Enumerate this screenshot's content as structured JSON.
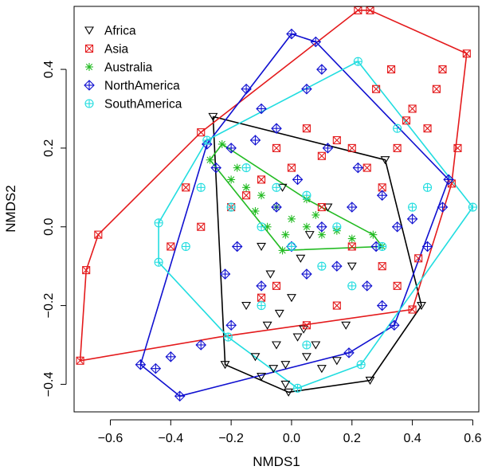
{
  "chart_data": {
    "type": "scatter",
    "title": "",
    "xlabel": "NMDS1",
    "ylabel": "NMDS2",
    "xlim": [
      -0.72,
      0.62
    ],
    "ylim": [
      -0.47,
      0.56
    ],
    "xticks": [
      -0.6,
      -0.4,
      -0.2,
      0.0,
      0.2,
      0.4,
      0.6
    ],
    "xtick_labels": [
      "−0.6",
      "−0.4",
      "−0.2",
      "0.0",
      "0.2",
      "0.4",
      "0.6"
    ],
    "yticks": [
      -0.4,
      -0.2,
      0.0,
      0.2,
      0.4
    ],
    "ytick_labels": [
      "−0.4",
      "−0.2",
      "0.0",
      "0.2",
      "0.4"
    ],
    "grid": false,
    "legend_position": "top-left",
    "series": [
      {
        "name": "Africa",
        "color": "#000000",
        "marker": "triangle-down",
        "hull": [
          [
            -0.26,
            0.28
          ],
          [
            0.31,
            0.17
          ],
          [
            0.43,
            -0.2
          ],
          [
            0.26,
            -0.39
          ],
          [
            -0.01,
            -0.42
          ],
          [
            -0.22,
            -0.35
          ],
          [
            -0.26,
            0.28
          ]
        ],
        "points": [
          [
            -0.26,
            0.28
          ],
          [
            0.31,
            0.17
          ],
          [
            0.43,
            -0.2
          ],
          [
            0.26,
            -0.39
          ],
          [
            -0.01,
            -0.42
          ],
          [
            -0.22,
            -0.35
          ],
          [
            -0.1,
            -0.38
          ],
          [
            0.1,
            -0.36
          ],
          [
            -0.05,
            -0.3
          ],
          [
            0.02,
            -0.28
          ],
          [
            -0.08,
            -0.25
          ],
          [
            0.05,
            -0.33
          ],
          [
            -0.02,
            -0.35
          ],
          [
            0.08,
            -0.3
          ],
          [
            -0.12,
            -0.33
          ],
          [
            0.15,
            -0.34
          ],
          [
            -0.04,
            -0.22
          ],
          [
            0.0,
            -0.18
          ],
          [
            -0.07,
            -0.12
          ],
          [
            0.03,
            -0.08
          ],
          [
            -0.1,
            -0.05
          ],
          [
            0.06,
            -0.02
          ],
          [
            -0.03,
            0.1
          ],
          [
            0.12,
            0.05
          ],
          [
            0.2,
            -0.1
          ],
          [
            -0.15,
            -0.2
          ],
          [
            0.18,
            -0.25
          ],
          [
            -0.02,
            -0.4
          ],
          [
            0.04,
            -0.26
          ],
          [
            -0.06,
            -0.36
          ]
        ]
      },
      {
        "name": "Asia",
        "color": "#e41a1c",
        "marker": "square-x",
        "hull": [
          [
            -0.7,
            -0.34
          ],
          [
            -0.68,
            -0.11
          ],
          [
            -0.64,
            -0.02
          ],
          [
            -0.3,
            0.24
          ],
          [
            0.22,
            0.55
          ],
          [
            0.26,
            0.55
          ],
          [
            0.58,
            0.44
          ],
          [
            0.53,
            0.11
          ],
          [
            0.4,
            -0.21
          ],
          [
            -0.24,
            -0.28
          ],
          [
            -0.7,
            -0.34
          ]
        ],
        "points": [
          [
            -0.7,
            -0.34
          ],
          [
            -0.68,
            -0.11
          ],
          [
            -0.64,
            -0.02
          ],
          [
            -0.3,
            0.24
          ],
          [
            0.22,
            0.55
          ],
          [
            0.26,
            0.55
          ],
          [
            0.58,
            0.44
          ],
          [
            0.53,
            0.11
          ],
          [
            0.4,
            -0.21
          ],
          [
            0.5,
            0.4
          ],
          [
            0.55,
            0.2
          ],
          [
            0.48,
            0.35
          ],
          [
            0.45,
            0.25
          ],
          [
            0.4,
            0.3
          ],
          [
            0.35,
            0.2
          ],
          [
            0.3,
            0.1
          ],
          [
            0.25,
            0.15
          ],
          [
            0.2,
            0.2
          ],
          [
            0.15,
            0.22
          ],
          [
            0.1,
            0.18
          ],
          [
            0.05,
            0.25
          ],
          [
            0.0,
            0.15
          ],
          [
            -0.05,
            0.2
          ],
          [
            -0.1,
            0.12
          ],
          [
            -0.15,
            0.08
          ],
          [
            -0.2,
            0.05
          ],
          [
            0.1,
            0.05
          ],
          [
            0.2,
            -0.05
          ],
          [
            0.3,
            -0.1
          ],
          [
            0.35,
            -0.15
          ],
          [
            0.42,
            -0.08
          ],
          [
            0.15,
            -0.2
          ],
          [
            0.05,
            -0.25
          ],
          [
            -0.05,
            -0.15
          ],
          [
            -0.1,
            -0.18
          ],
          [
            -0.3,
            0.0
          ],
          [
            -0.4,
            -0.05
          ],
          [
            -0.35,
            0.1
          ],
          [
            0.28,
            0.35
          ],
          [
            0.33,
            0.4
          ],
          [
            0.38,
            0.27
          ]
        ]
      },
      {
        "name": "Australia",
        "color": "#22bb22",
        "marker": "asterisk",
        "hull": [
          [
            -0.27,
            0.17
          ],
          [
            -0.23,
            0.21
          ],
          [
            0.05,
            0.07
          ],
          [
            0.27,
            -0.02
          ],
          [
            0.3,
            -0.05
          ],
          [
            -0.03,
            -0.06
          ],
          [
            -0.27,
            0.17
          ]
        ],
        "points": [
          [
            -0.27,
            0.17
          ],
          [
            -0.23,
            0.21
          ],
          [
            0.05,
            0.07
          ],
          [
            0.27,
            -0.02
          ],
          [
            0.3,
            -0.05
          ],
          [
            -0.03,
            -0.06
          ],
          [
            -0.2,
            0.12
          ],
          [
            -0.15,
            0.1
          ],
          [
            -0.1,
            0.08
          ],
          [
            -0.05,
            0.05
          ],
          [
            0.0,
            0.02
          ],
          [
            0.05,
            0.0
          ],
          [
            0.1,
            -0.02
          ],
          [
            0.15,
            -0.01
          ],
          [
            0.2,
            -0.03
          ],
          [
            -0.12,
            0.04
          ],
          [
            -0.08,
            0.0
          ],
          [
            -0.02,
            -0.02
          ],
          [
            -0.18,
            0.15
          ],
          [
            0.08,
            0.03
          ]
        ]
      },
      {
        "name": "NorthAmerica",
        "color": "#1010d0",
        "marker": "diamond-plus",
        "hull": [
          [
            -0.5,
            -0.35
          ],
          [
            -0.28,
            0.21
          ],
          [
            0.0,
            0.49
          ],
          [
            0.08,
            0.47
          ],
          [
            0.52,
            0.12
          ],
          [
            0.34,
            -0.25
          ],
          [
            0.19,
            -0.32
          ],
          [
            -0.37,
            -0.43
          ],
          [
            -0.5,
            -0.35
          ]
        ],
        "points": [
          [
            -0.5,
            -0.35
          ],
          [
            -0.28,
            0.21
          ],
          [
            0.0,
            0.49
          ],
          [
            0.08,
            0.47
          ],
          [
            0.52,
            0.12
          ],
          [
            0.34,
            -0.25
          ],
          [
            0.19,
            -0.32
          ],
          [
            -0.37,
            -0.43
          ],
          [
            -0.45,
            -0.36
          ],
          [
            -0.4,
            -0.33
          ],
          [
            -0.3,
            -0.3
          ],
          [
            -0.2,
            -0.25
          ],
          [
            -0.1,
            -0.15
          ],
          [
            0.0,
            -0.05
          ],
          [
            0.1,
            0.0
          ],
          [
            0.2,
            0.05
          ],
          [
            0.3,
            0.08
          ],
          [
            0.4,
            0.02
          ],
          [
            0.45,
            -0.05
          ],
          [
            0.5,
            0.05
          ],
          [
            -0.15,
            0.35
          ],
          [
            -0.1,
            0.3
          ],
          [
            -0.05,
            0.25
          ],
          [
            0.05,
            0.35
          ],
          [
            0.1,
            0.4
          ],
          [
            -0.2,
            0.2
          ],
          [
            -0.25,
            0.15
          ],
          [
            0.15,
            -0.1
          ],
          [
            0.25,
            -0.15
          ],
          [
            0.3,
            -0.2
          ],
          [
            0.05,
            -0.12
          ],
          [
            -0.05,
            0.05
          ],
          [
            0.02,
            0.12
          ],
          [
            0.12,
            0.2
          ],
          [
            0.22,
            0.15
          ],
          [
            -0.18,
            -0.05
          ],
          [
            -0.22,
            -0.12
          ],
          [
            0.35,
            0.0
          ],
          [
            0.28,
            -0.05
          ],
          [
            -0.12,
            0.22
          ]
        ]
      },
      {
        "name": "SouthAmerica",
        "color": "#22dde0",
        "marker": "circle-plus",
        "hull": [
          [
            -0.44,
            -0.09
          ],
          [
            -0.44,
            0.01
          ],
          [
            -0.28,
            0.22
          ],
          [
            0.22,
            0.42
          ],
          [
            0.6,
            0.05
          ],
          [
            0.23,
            -0.35
          ],
          [
            0.02,
            -0.41
          ],
          [
            -0.21,
            -0.28
          ],
          [
            -0.44,
            -0.09
          ]
        ],
        "points": [
          [
            -0.44,
            -0.09
          ],
          [
            -0.44,
            0.01
          ],
          [
            -0.28,
            0.22
          ],
          [
            0.22,
            0.42
          ],
          [
            0.6,
            0.05
          ],
          [
            0.23,
            -0.35
          ],
          [
            0.02,
            -0.41
          ],
          [
            -0.21,
            -0.28
          ],
          [
            -0.3,
            0.1
          ],
          [
            -0.2,
            0.05
          ],
          [
            -0.1,
            0.0
          ],
          [
            0.0,
            -0.05
          ],
          [
            0.1,
            -0.1
          ],
          [
            0.2,
            -0.15
          ],
          [
            0.3,
            -0.05
          ],
          [
            0.4,
            0.05
          ],
          [
            -0.15,
            0.15
          ],
          [
            -0.05,
            0.1
          ],
          [
            0.05,
            0.08
          ],
          [
            0.15,
            0.0
          ],
          [
            -0.35,
            -0.05
          ],
          [
            0.35,
            0.25
          ],
          [
            0.45,
            0.1
          ],
          [
            -0.1,
            -0.2
          ],
          [
            0.05,
            -0.3
          ]
        ]
      }
    ]
  }
}
